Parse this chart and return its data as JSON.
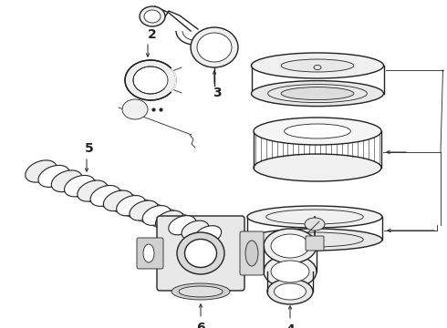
{
  "bg_color": "#ffffff",
  "line_color": "#222222",
  "label_color": "#000000",
  "figsize": [
    4.9,
    3.6
  ],
  "dpi": 100,
  "xlim": [
    0,
    490
  ],
  "ylim": [
    0,
    360
  ]
}
